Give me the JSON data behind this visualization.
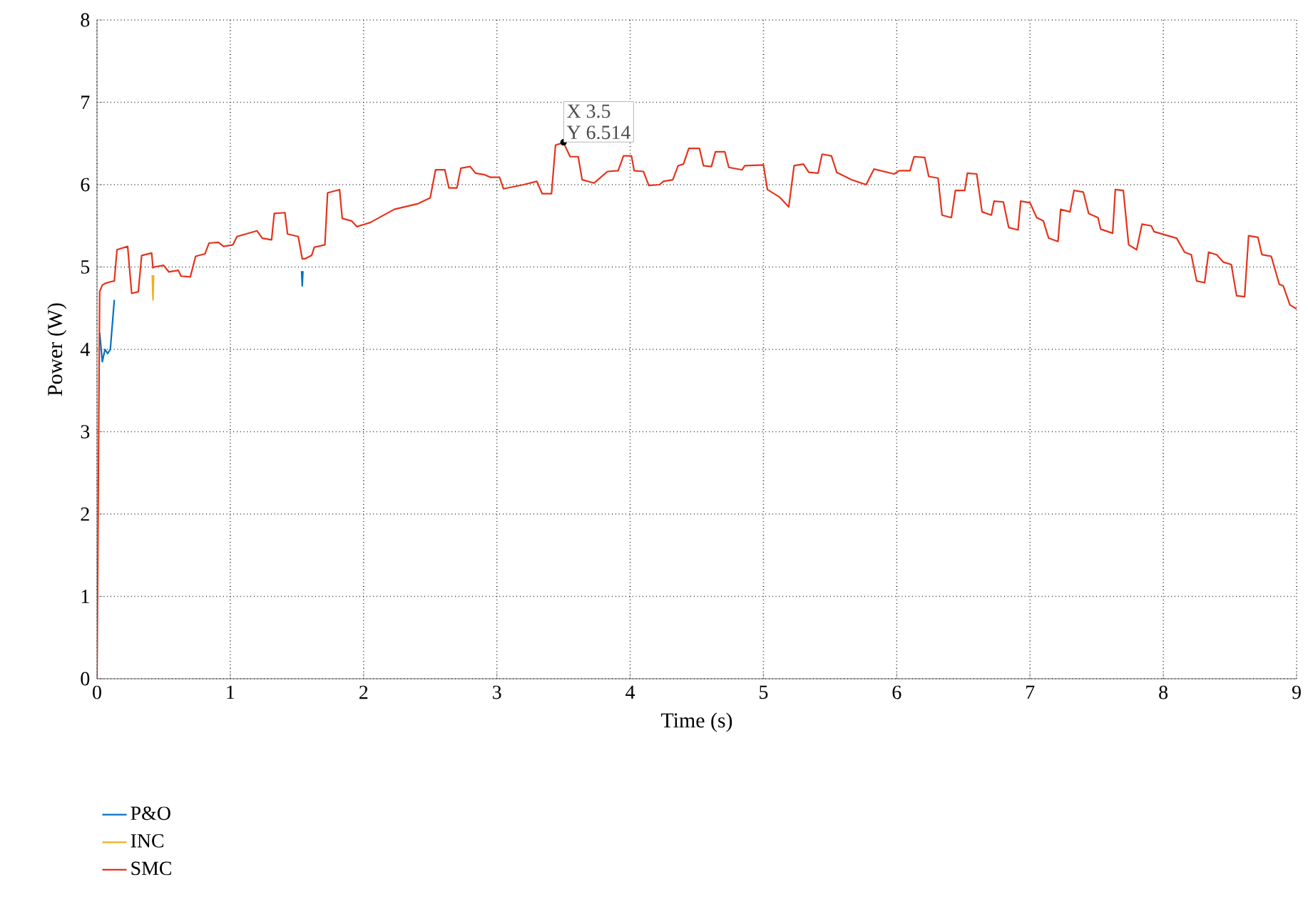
{
  "chart_data": {
    "type": "line",
    "xlabel": "Time (s)",
    "ylabel": "Power (W)",
    "xlim": [
      0,
      9
    ],
    "ylim": [
      0,
      8
    ],
    "xticks": [
      0,
      1,
      2,
      3,
      4,
      5,
      6,
      7,
      8,
      9
    ],
    "yticks": [
      0,
      1,
      2,
      3,
      4,
      5,
      6,
      7,
      8
    ],
    "grid": true,
    "legend": "bottom left",
    "line_style": "solid",
    "marker": "none",
    "annotations": [
      {
        "text": "X 3.5",
        "x": 3.5,
        "y": 6.514
      },
      {
        "text": "Y 6.514",
        "x": 3.5,
        "y": 6.514
      }
    ],
    "x": [
      0,
      0.02,
      0.04,
      0.06,
      0.08,
      0.1,
      0.13,
      0.15,
      0.23,
      0.26,
      0.31,
      0.335,
      0.41,
      0.42,
      0.43,
      0.5,
      0.54,
      0.61,
      0.63,
      0.7,
      0.74,
      0.81,
      0.84,
      0.91,
      0.95,
      1.02,
      1.05,
      1.2,
      1.24,
      1.31,
      1.33,
      1.41,
      1.43,
      1.51,
      1.54,
      1.56,
      1.61,
      1.63,
      1.71,
      1.73,
      1.82,
      1.84,
      1.91,
      1.95,
      2.05,
      2.23,
      2.41,
      2.5,
      2.54,
      2.61,
      2.64,
      2.7,
      2.73,
      2.8,
      2.84,
      2.91,
      2.95,
      3.02,
      3.05,
      3.2,
      3.3,
      3.34,
      3.41,
      3.44,
      3.5,
      3.55,
      3.61,
      3.64,
      3.73,
      3.83,
      3.91,
      3.95,
      4.01,
      4.03,
      4.1,
      4.14,
      4.22,
      4.25,
      4.32,
      4.36,
      4.4,
      4.44,
      4.52,
      4.55,
      4.61,
      4.64,
      4.71,
      4.74,
      4.84,
      4.86,
      5.0,
      5.03,
      5.12,
      5.19,
      5.23,
      5.3,
      5.34,
      5.41,
      5.44,
      5.51,
      5.55,
      5.66,
      5.77,
      5.83,
      5.98,
      6.02,
      6.1,
      6.13,
      6.21,
      6.24,
      6.31,
      6.34,
      6.41,
      6.44,
      6.51,
      6.53,
      6.6,
      6.64,
      6.71,
      6.73,
      6.8,
      6.84,
      6.91,
      6.93,
      7.0,
      7.05,
      7.1,
      7.14,
      7.21,
      7.23,
      7.3,
      7.33,
      7.4,
      7.44,
      7.51,
      7.53,
      7.62,
      7.64,
      7.7,
      7.74,
      7.8,
      7.84,
      7.91,
      7.93,
      8.1,
      8.16,
      8.21,
      8.25,
      8.31,
      8.34,
      8.4,
      8.45,
      8.51,
      8.55,
      8.61,
      8.64,
      8.71,
      8.74,
      8.81,
      8.87,
      8.9,
      8.95,
      9.0
    ],
    "series": [
      {
        "name": "P&O",
        "color": "#0072bd",
        "x": [
          0.02,
          0.04,
          0.06,
          0.08,
          0.1,
          0.13,
          1.0,
          1.535,
          1.54,
          1.545
        ],
        "values": [
          4.2,
          3.85,
          4.0,
          3.95,
          4.0,
          4.6,
          null,
          4.95,
          4.77,
          4.95
        ]
      },
      {
        "name": "INC",
        "color": "#edb120",
        "x": [
          0.415,
          0.42,
          0.425
        ],
        "values": [
          4.9,
          4.6,
          4.9
        ]
      },
      {
        "name": "SMC",
        "color": "#e5331b",
        "values": [
          0,
          4.7,
          4.78,
          4.8,
          4.81,
          4.82,
          4.83,
          5.21,
          5.25,
          4.68,
          4.7,
          5.14,
          5.17,
          4.99,
          5.0,
          5.02,
          4.94,
          4.96,
          4.89,
          4.88,
          5.13,
          5.16,
          5.29,
          5.3,
          5.25,
          5.27,
          5.37,
          5.44,
          5.35,
          5.33,
          5.65,
          5.66,
          5.4,
          5.37,
          5.1,
          5.1,
          5.14,
          5.24,
          5.27,
          5.9,
          5.94,
          5.59,
          5.56,
          5.49,
          5.54,
          5.7,
          5.77,
          5.84,
          6.18,
          6.18,
          5.96,
          5.96,
          6.2,
          6.22,
          6.14,
          6.12,
          6.09,
          6.09,
          5.95,
          6.0,
          6.04,
          5.89,
          5.89,
          6.48,
          6.51,
          6.34,
          6.34,
          6.06,
          6.02,
          6.16,
          6.17,
          6.35,
          6.35,
          6.17,
          6.16,
          5.99,
          6.0,
          6.04,
          6.06,
          6.23,
          6.25,
          6.44,
          6.44,
          6.23,
          6.22,
          6.4,
          6.4,
          6.21,
          6.18,
          6.23,
          6.24,
          5.94,
          5.85,
          5.73,
          6.23,
          6.25,
          6.15,
          6.14,
          6.37,
          6.35,
          6.15,
          6.06,
          6.0,
          6.19,
          6.13,
          6.17,
          6.17,
          6.34,
          6.33,
          6.1,
          6.08,
          5.63,
          5.6,
          5.93,
          5.93,
          6.14,
          6.13,
          5.67,
          5.63,
          5.8,
          5.79,
          5.48,
          5.45,
          5.8,
          5.78,
          5.6,
          5.56,
          5.35,
          5.31,
          5.7,
          5.67,
          5.93,
          5.91,
          5.65,
          5.6,
          5.46,
          5.41,
          5.94,
          5.93,
          5.27,
          5.21,
          5.52,
          5.5,
          5.43,
          5.35,
          5.18,
          5.15,
          4.83,
          4.81,
          5.18,
          5.15,
          5.06,
          5.03,
          4.65,
          4.64,
          5.38,
          5.36,
          5.15,
          5.13,
          4.79,
          4.77,
          4.54,
          4.49
        ]
      }
    ]
  }
}
